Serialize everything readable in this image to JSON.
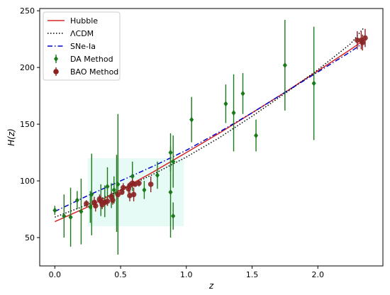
{
  "chart_data": {
    "type": "scatter",
    "title": "",
    "xlabel": "z",
    "ylabel": "H(z)",
    "xlim": [
      -0.115,
      2.495
    ],
    "ylim": [
      25,
      252
    ],
    "xticks": [
      0.0,
      0.5,
      1.0,
      1.5,
      2.0
    ],
    "xtick_labels": [
      "0.0",
      "0.5",
      "1.0",
      "1.5",
      "2.0"
    ],
    "yticks": [
      50,
      100,
      150,
      200,
      250
    ],
    "ytick_labels": [
      "50",
      "100",
      "150",
      "200",
      "250"
    ],
    "grid": false,
    "legend_position": "top-left",
    "legend": [
      "Hubble",
      "ΛCDM",
      "SNe-Ia",
      "DA Method",
      "BAO Method"
    ],
    "colors": {
      "hubble": "#d62728",
      "lcdm": "#000000",
      "snia": "#0000cc",
      "da": "#1a7a1a",
      "bao": "#8b2323",
      "band": "#e6fbf5"
    },
    "curves": [
      {
        "name": "Hubble",
        "style": "solid",
        "x": [
          0.0,
          0.25,
          0.5,
          0.75,
          1.0,
          1.25,
          1.5,
          1.75,
          2.0,
          2.25,
          2.35
        ],
        "y": [
          64,
          77,
          92,
          108,
          125,
          142,
          160,
          178,
          197,
          216,
          224
        ]
      },
      {
        "name": "ΛCDM",
        "style": "dotted",
        "x": [
          0.0,
          0.25,
          0.5,
          0.75,
          1.0,
          1.25,
          1.5,
          1.75,
          2.0,
          2.25,
          2.35
        ],
        "y": [
          68,
          79,
          92,
          106,
          121,
          138,
          157,
          177,
          198,
          221,
          235
        ]
      },
      {
        "name": "SNe-Ia",
        "style": "dashdot",
        "x": [
          0.0,
          0.25,
          0.5,
          0.75,
          1.0,
          1.25,
          1.5,
          1.75,
          2.0,
          2.25,
          2.35
        ],
        "y": [
          73,
          87,
          100,
          113,
          127,
          143,
          160,
          178,
          196,
          214,
          222
        ]
      }
    ],
    "series": [
      {
        "name": "DA Method",
        "marker": "diamond",
        "points": [
          {
            "x": 0.0,
            "y": 74,
            "err": 4
          },
          {
            "x": 0.07,
            "y": 69,
            "err": 19
          },
          {
            "x": 0.12,
            "y": 68,
            "err": 26
          },
          {
            "x": 0.17,
            "y": 83,
            "err": 8
          },
          {
            "x": 0.2,
            "y": 73,
            "err": 29
          },
          {
            "x": 0.27,
            "y": 77,
            "err": 14
          },
          {
            "x": 0.28,
            "y": 88,
            "err": 36
          },
          {
            "x": 0.35,
            "y": 83,
            "err": 14
          },
          {
            "x": 0.38,
            "y": 82,
            "err": 14
          },
          {
            "x": 0.4,
            "y": 95,
            "err": 17
          },
          {
            "x": 0.43,
            "y": 87,
            "err": 11
          },
          {
            "x": 0.45,
            "y": 92,
            "err": 12
          },
          {
            "x": 0.47,
            "y": 89,
            "err": 34
          },
          {
            "x": 0.48,
            "y": 97,
            "err": 62
          },
          {
            "x": 0.59,
            "y": 104,
            "err": 13
          },
          {
            "x": 0.68,
            "y": 92,
            "err": 8
          },
          {
            "x": 0.78,
            "y": 105,
            "err": 12
          },
          {
            "x": 0.88,
            "y": 125,
            "err": 17
          },
          {
            "x": 0.88,
            "y": 90,
            "err": 40
          },
          {
            "x": 0.9,
            "y": 117,
            "err": 23
          },
          {
            "x": 0.9,
            "y": 69,
            "err": 12
          },
          {
            "x": 1.04,
            "y": 154,
            "err": 20
          },
          {
            "x": 1.3,
            "y": 168,
            "err": 17
          },
          {
            "x": 1.36,
            "y": 160,
            "err": 34
          },
          {
            "x": 1.43,
            "y": 177,
            "err": 18
          },
          {
            "x": 1.53,
            "y": 140,
            "err": 14
          },
          {
            "x": 1.75,
            "y": 202,
            "err": 40
          },
          {
            "x": 1.97,
            "y": 186,
            "err": 50
          }
        ]
      },
      {
        "name": "BAO Method",
        "marker": "circle",
        "points": [
          {
            "x": 0.24,
            "y": 80,
            "err": 3
          },
          {
            "x": 0.3,
            "y": 81,
            "err": 5
          },
          {
            "x": 0.31,
            "y": 78,
            "err": 5
          },
          {
            "x": 0.34,
            "y": 84,
            "err": 4
          },
          {
            "x": 0.35,
            "y": 82,
            "err": 5
          },
          {
            "x": 0.36,
            "y": 79,
            "err": 4
          },
          {
            "x": 0.38,
            "y": 81,
            "err": 2
          },
          {
            "x": 0.4,
            "y": 82,
            "err": 4
          },
          {
            "x": 0.43,
            "y": 86,
            "err": 4
          },
          {
            "x": 0.44,
            "y": 83,
            "err": 4
          },
          {
            "x": 0.48,
            "y": 88,
            "err": 4
          },
          {
            "x": 0.51,
            "y": 90,
            "err": 2
          },
          {
            "x": 0.52,
            "y": 94,
            "err": 4
          },
          {
            "x": 0.56,
            "y": 93,
            "err": 4
          },
          {
            "x": 0.57,
            "y": 87,
            "err": 5
          },
          {
            "x": 0.57,
            "y": 96,
            "err": 3
          },
          {
            "x": 0.59,
            "y": 98,
            "err": 4
          },
          {
            "x": 0.6,
            "y": 88,
            "err": 6
          },
          {
            "x": 0.61,
            "y": 97,
            "err": 2
          },
          {
            "x": 0.64,
            "y": 98,
            "err": 3
          },
          {
            "x": 0.73,
            "y": 97,
            "err": 7
          },
          {
            "x": 2.3,
            "y": 224,
            "err": 8
          },
          {
            "x": 2.33,
            "y": 224,
            "err": 8
          },
          {
            "x": 2.34,
            "y": 222,
            "err": 7
          },
          {
            "x": 2.36,
            "y": 226,
            "err": 8
          }
        ]
      }
    ]
  }
}
